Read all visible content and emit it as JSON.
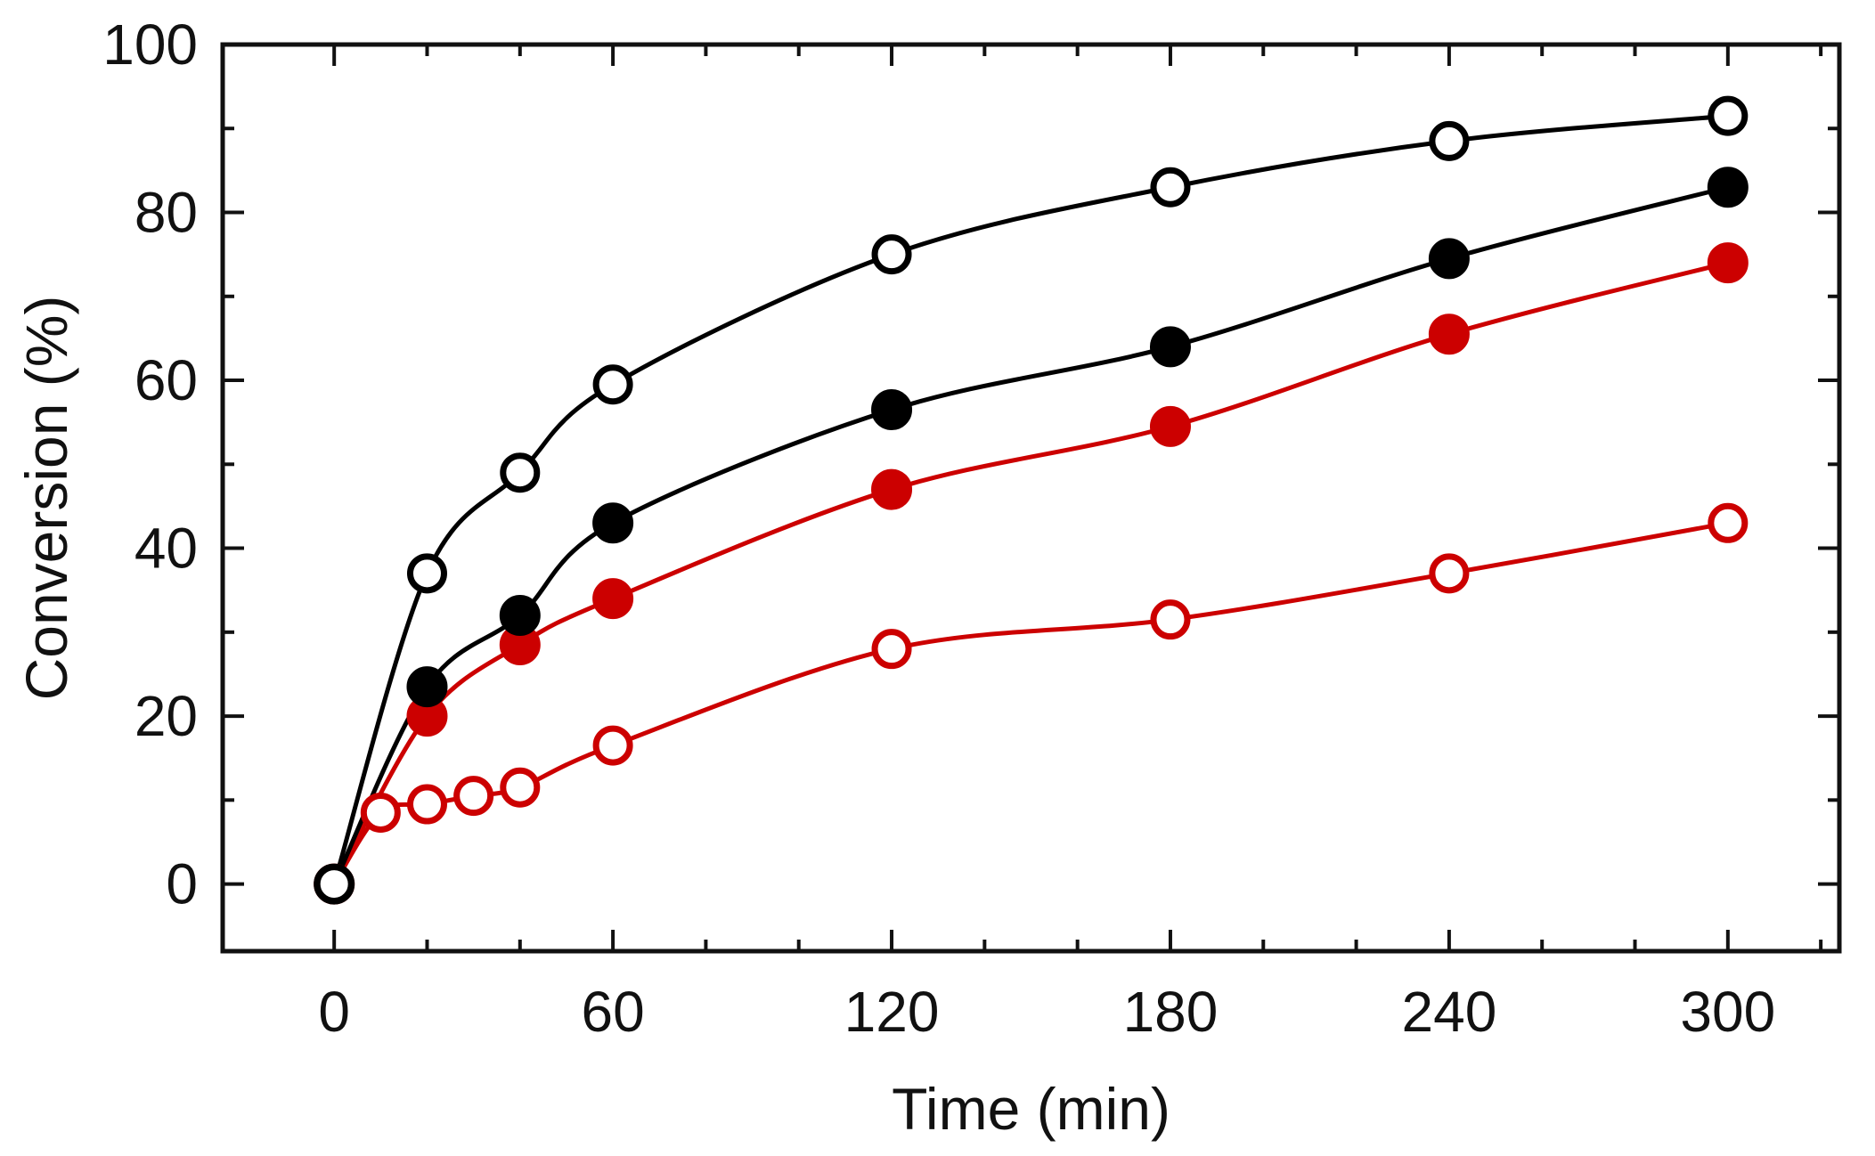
{
  "chart_data": {
    "type": "line",
    "title": "",
    "xlabel": "Time (min)",
    "ylabel": "Conversion (%)",
    "xlim": [
      -24,
      324
    ],
    "ylim": [
      -8,
      100
    ],
    "xticks": [
      0,
      60,
      120,
      180,
      240,
      300
    ],
    "yticks": [
      0,
      20,
      40,
      60,
      80,
      100
    ],
    "x_minor_step": 20,
    "y_minor_step": 10,
    "grid": false,
    "legend": "none",
    "series": [
      {
        "name": "black-open",
        "color": "#000000",
        "marker": "open-circle",
        "x": [
          0,
          20,
          40,
          60,
          120,
          180,
          240,
          300
        ],
        "y": [
          0,
          37,
          49,
          59.5,
          75,
          83,
          88.5,
          91.5
        ]
      },
      {
        "name": "black-filled",
        "color": "#000000",
        "marker": "filled-circle",
        "x": [
          0,
          20,
          40,
          60,
          120,
          180,
          240,
          300
        ],
        "y": [
          0,
          23.5,
          32,
          43,
          56.5,
          64,
          74.5,
          83
        ]
      },
      {
        "name": "red-filled",
        "color": "#cc0000",
        "marker": "filled-circle",
        "x": [
          0,
          20,
          40,
          60,
          120,
          180,
          240,
          300
        ],
        "y": [
          0,
          20,
          28.5,
          34,
          47,
          54.5,
          65.5,
          74
        ]
      },
      {
        "name": "red-open",
        "color": "#cc0000",
        "marker": "open-circle",
        "x": [
          0,
          10,
          20,
          30,
          40,
          60,
          120,
          180,
          240,
          300
        ],
        "y": [
          0,
          8.5,
          9.5,
          10.5,
          11.5,
          16.5,
          28,
          31.5,
          37,
          43
        ]
      }
    ]
  }
}
